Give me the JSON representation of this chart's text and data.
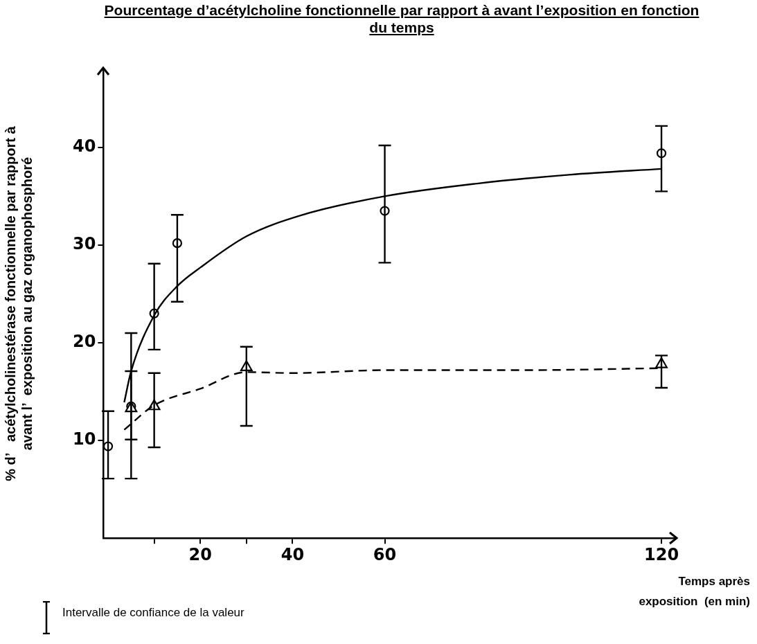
{
  "chart_data": {
    "type": "scatter",
    "title": "Pourcentage d’acétylcholine fonctionnelle par rapport à avant l’exposition en fonction du temps",
    "xlabel": "Temps après\nexposition  (en min)",
    "ylabel": "% d’   acétylcholinestérase fonctionnelle par rapport à\navant l’  exposition au gaz organophosphoré",
    "annotations": [
      "Intervalle de confiance de la valeur"
    ],
    "xlim": [
      -1,
      123
    ],
    "xticks": [
      {
        "value": 10,
        "label": null
      },
      20,
      {
        "value": 30,
        "label": null
      },
      40,
      60,
      120
    ],
    "ylim": [
      0,
      48
    ],
    "yticks": [
      10,
      20,
      30,
      40
    ],
    "grid": false,
    "legend": false,
    "series": [
      {
        "marker": "circle",
        "color": "#000000",
        "x": [
          0
        ],
        "values": [
          9.4
        ],
        "errors": [
          [
            6.1,
            13.0
          ]
        ]
      },
      {
        "marker": "circle",
        "color": "#000000",
        "x": [
          5,
          10,
          15,
          60,
          120
        ],
        "values": [
          13.5,
          23.0,
          30.2,
          33.5,
          39.4
        ],
        "errors": [
          [
            10.1,
            21.0
          ],
          [
            19.3,
            28.1
          ],
          [
            24.2,
            33.1
          ],
          [
            28.2,
            40.2
          ],
          [
            35.5,
            42.2
          ]
        ]
      },
      {
        "marker": "triangle",
        "color": "#000000",
        "x": [
          5,
          10,
          30,
          120
        ],
        "values": [
          13.3,
          13.5,
          17.5,
          17.8
        ],
        "errors": [
          [
            6.1,
            17.1
          ],
          [
            9.3,
            16.9
          ],
          [
            11.5,
            19.6
          ],
          [
            15.4,
            18.7
          ]
        ]
      },
      {
        "type": "line",
        "marker": "none",
        "line_style": "solid",
        "color": "#000000",
        "x": [
          3.5,
          5,
          10,
          15,
          20,
          30,
          41.5,
          60,
          80,
          100,
          120
        ],
        "values": [
          13.9,
          17.1,
          22.8,
          25.8,
          27.7,
          30.9,
          33.0,
          35.0,
          36.3,
          37.2,
          37.8
        ]
      },
      {
        "type": "line",
        "marker": "none",
        "line_style": "dashed",
        "color": "#000000",
        "x": [
          3.5,
          10,
          20,
          30,
          40,
          60,
          90,
          120
        ],
        "values": [
          11.1,
          13.6,
          15.3,
          17.0,
          16.9,
          17.2,
          17.2,
          17.4
        ]
      }
    ]
  }
}
